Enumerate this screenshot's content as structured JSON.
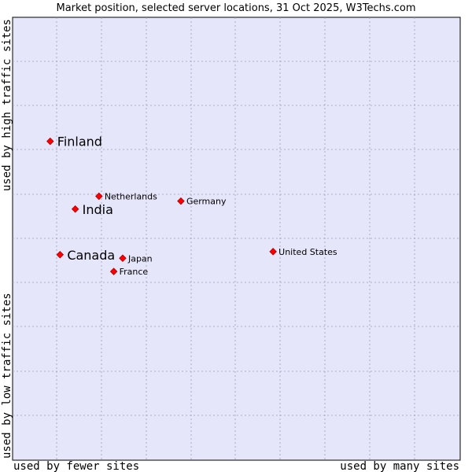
{
  "chart_data": {
    "type": "scatter",
    "title": "Market position, selected server locations, 31 Oct 2025, W3Techs.com",
    "xlabel_left": "used by fewer sites",
    "xlabel_right": "used by many sites",
    "ylabel_bottom": "used by low traffic sites",
    "ylabel_top": "used by high traffic sites",
    "xlim": [
      0,
      100
    ],
    "ylim": [
      0,
      100
    ],
    "grid": true,
    "colors": {
      "plot_bg": "#e6e6fa",
      "grid": "#9a9ab4",
      "marker": "#ff0000",
      "marker_edge": "#aa0000"
    },
    "points": [
      {
        "label": "Finland",
        "x": 8.4,
        "y": 72.0,
        "size": "large"
      },
      {
        "label": "Netherlands",
        "x": 19.3,
        "y": 59.6,
        "size": "small"
      },
      {
        "label": "Germany",
        "x": 37.6,
        "y": 58.5,
        "size": "small"
      },
      {
        "label": "India",
        "x": 14.0,
        "y": 56.7,
        "size": "large"
      },
      {
        "label": "United States",
        "x": 58.2,
        "y": 47.1,
        "size": "small"
      },
      {
        "label": "Canada",
        "x": 10.6,
        "y": 46.4,
        "size": "large"
      },
      {
        "label": "Japan",
        "x": 24.6,
        "y": 45.6,
        "size": "small"
      },
      {
        "label": "France",
        "x": 22.6,
        "y": 42.6,
        "size": "small"
      }
    ]
  }
}
